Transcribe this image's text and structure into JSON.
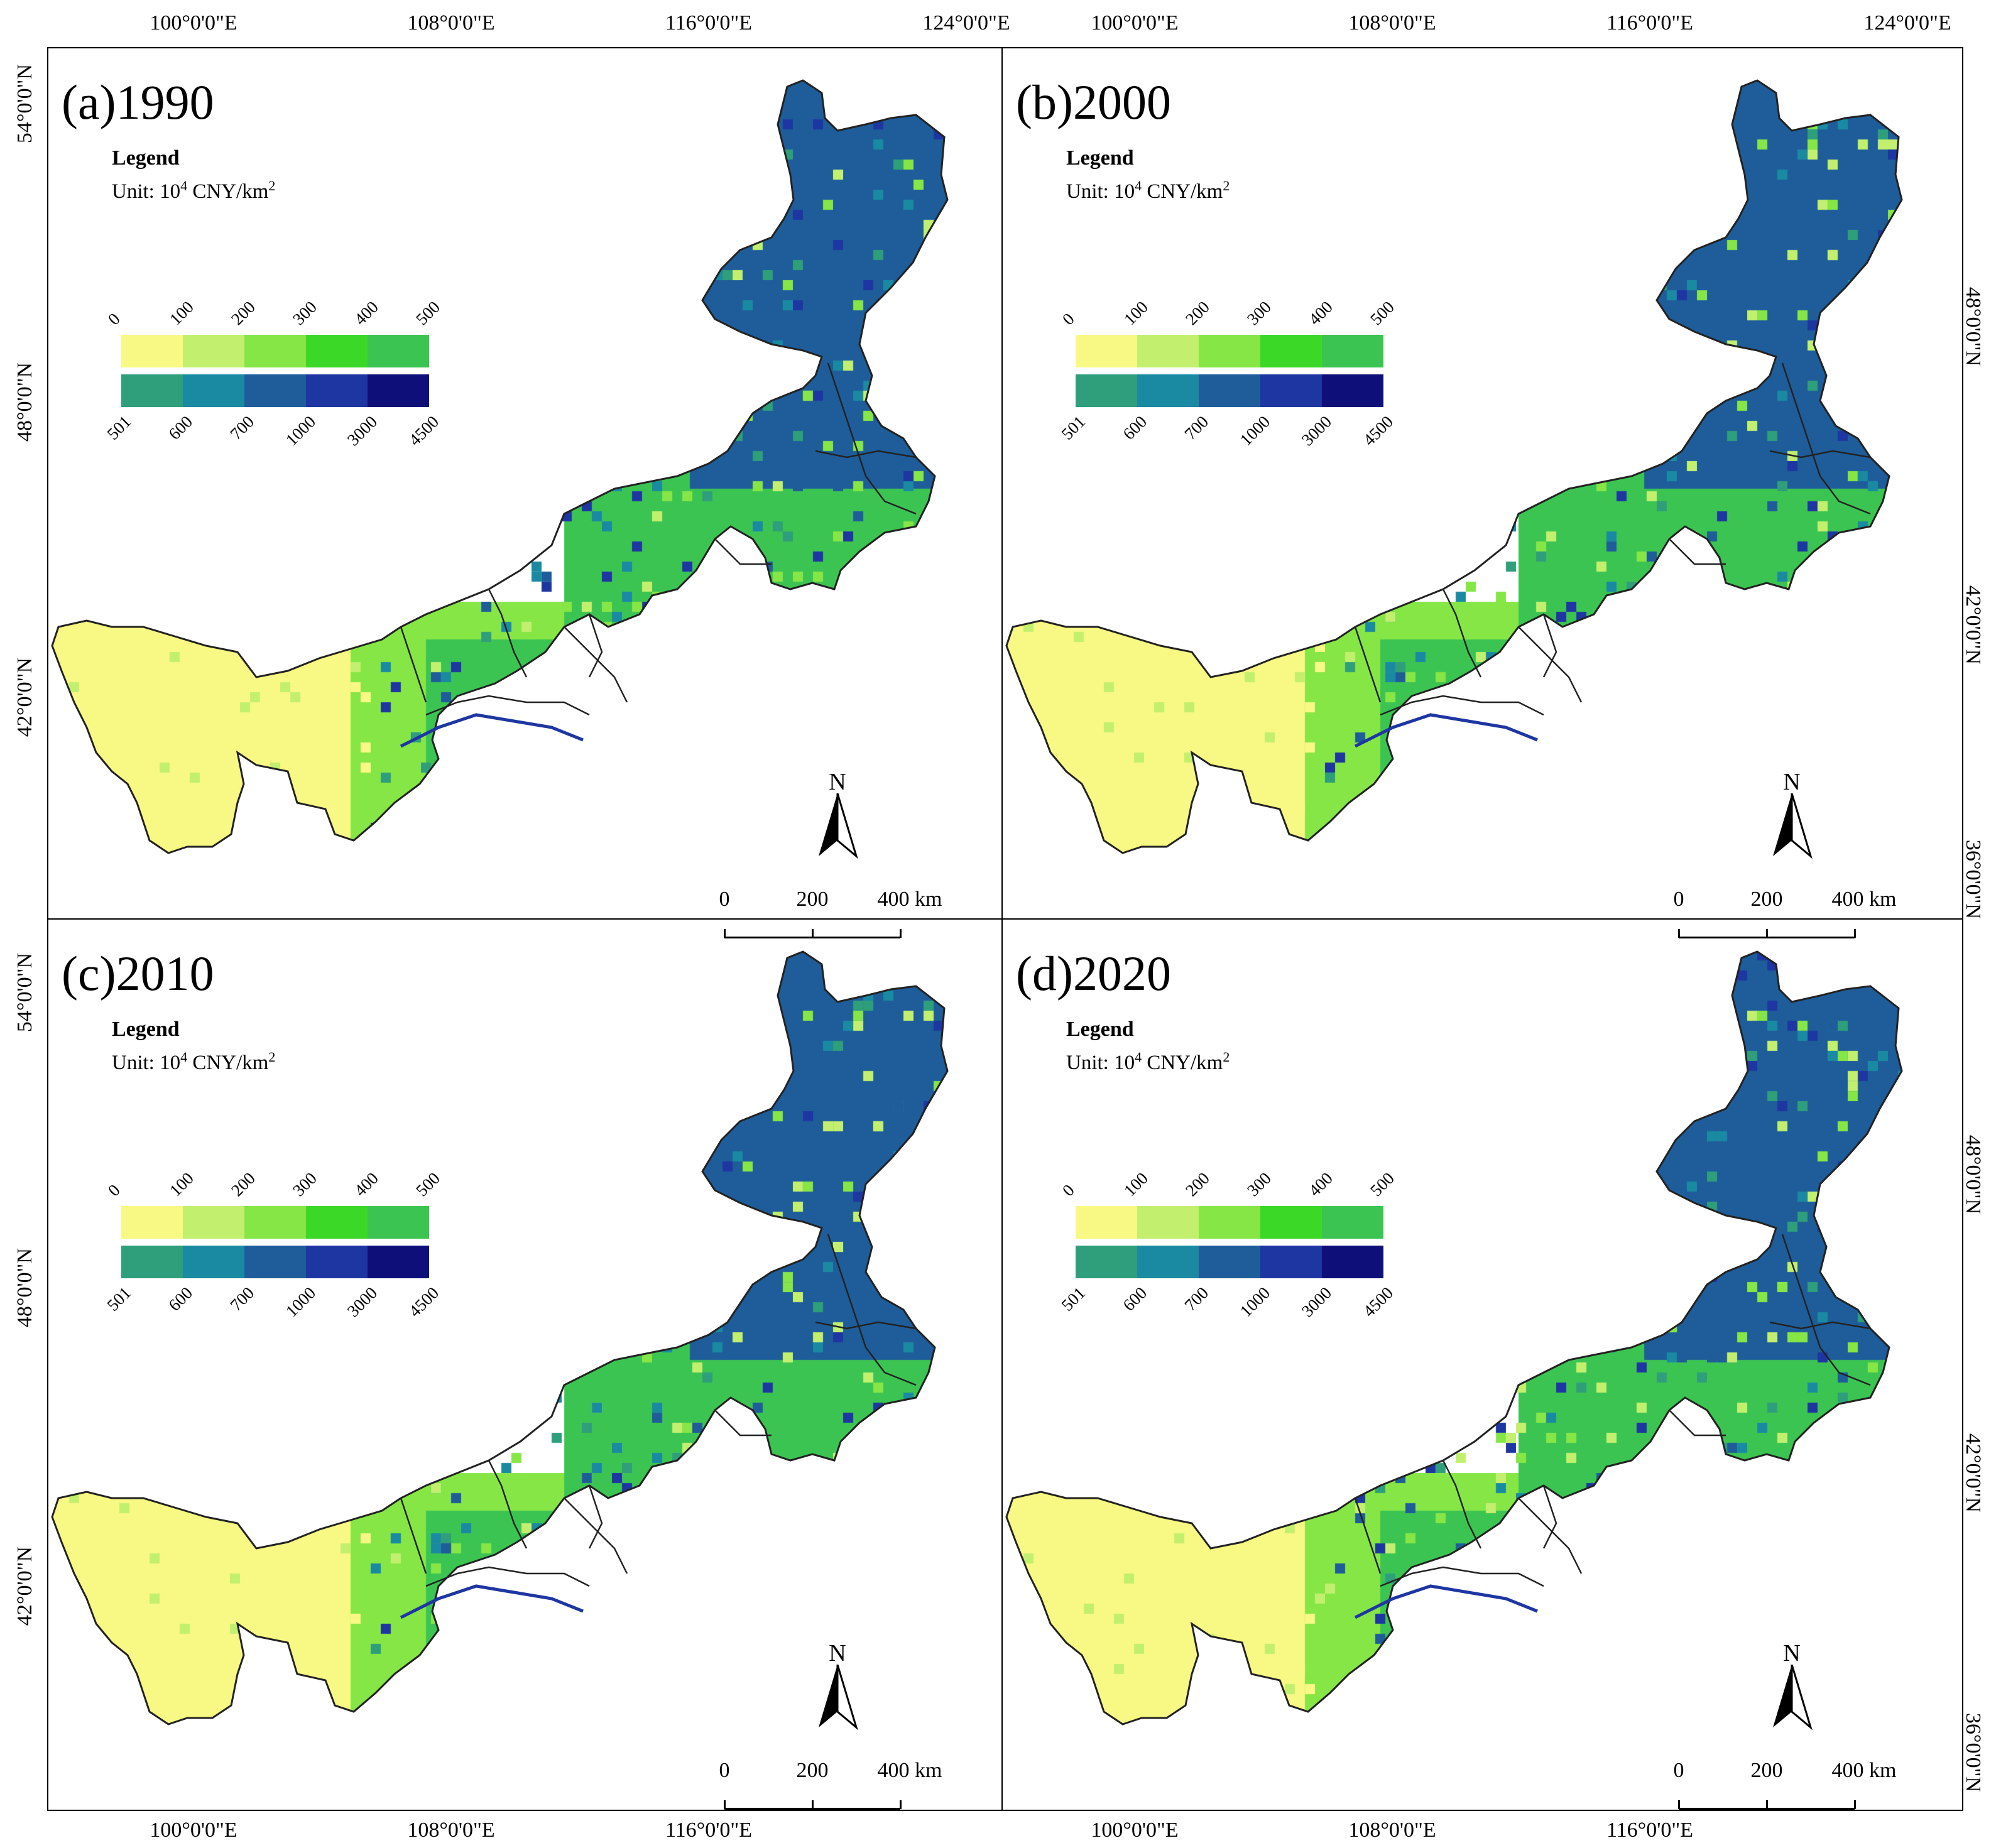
{
  "axes": {
    "lon_labels": [
      "100°0'0\"E",
      "108°0'0\"E",
      "116°0'0\"E",
      "124°0'0\"E"
    ],
    "lat_labels": [
      "54°0'0\"N",
      "48°0'0\"N",
      "42°0'0\"N",
      "36°0'0\"N"
    ]
  },
  "legend": {
    "title": "Legend",
    "unit_prefix": "Unit: 10",
    "unit_exp": "4",
    "unit_suffix": " CNY/km",
    "unit_exp2": "2",
    "top_labels": [
      "0",
      "100",
      "200",
      "300",
      "400",
      "500"
    ],
    "bottom_labels": [
      "501",
      "600",
      "700",
      "1000",
      "3000",
      "4500"
    ],
    "top_colors": [
      "#f8f884",
      "#c2f06e",
      "#86e646",
      "#3cd828",
      "#3cc453"
    ],
    "bottom_colors": [
      "#2f9e7a",
      "#1a8aa2",
      "#1e5d9a",
      "#1e36a2",
      "#0f0f7a"
    ]
  },
  "north_arrow": {
    "letter": "N"
  },
  "scale": {
    "labels": [
      "0",
      "200",
      "400 km"
    ]
  },
  "panels": [
    {
      "title": "(a)1990"
    },
    {
      "title": "(b)2000"
    },
    {
      "title": "(c)2010"
    },
    {
      "title": "(d)2020"
    }
  ]
}
